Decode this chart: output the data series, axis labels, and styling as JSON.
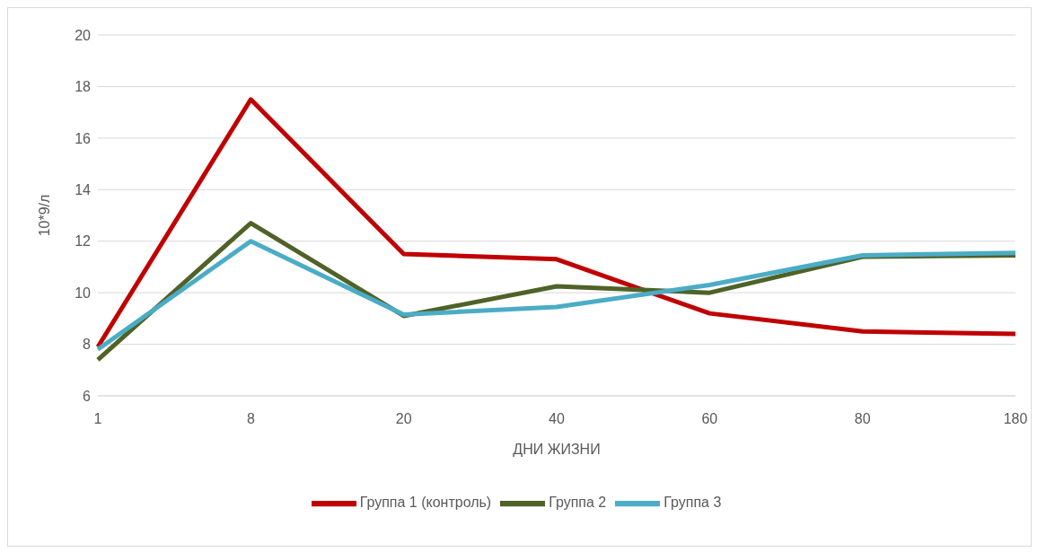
{
  "chart_data": {
    "type": "line",
    "xlabel": "ДНИ ЖИЗНИ",
    "ylabel": "10*9/л",
    "categories": [
      "1",
      "8",
      "20",
      "40",
      "60",
      "80",
      "180"
    ],
    "series": [
      {
        "name": "Группа 1 (контроль)",
        "color": "#c00000",
        "values": [
          7.9,
          17.5,
          11.5,
          11.3,
          9.2,
          8.5,
          8.4
        ]
      },
      {
        "name": "Группа 2",
        "color": "#4f6228",
        "values": [
          7.4,
          12.7,
          9.1,
          10.25,
          10.0,
          11.4,
          11.45
        ]
      },
      {
        "name": "Группа 3",
        "color": "#4bacc6",
        "values": [
          7.8,
          12.0,
          9.15,
          9.45,
          10.3,
          11.45,
          11.55
        ]
      }
    ],
    "ylim": [
      6,
      20
    ],
    "yticks": [
      6,
      8,
      10,
      12,
      14,
      16,
      18,
      20
    ],
    "grid": "y",
    "legend": "bottom",
    "marker": "none",
    "line_style": "solid"
  }
}
